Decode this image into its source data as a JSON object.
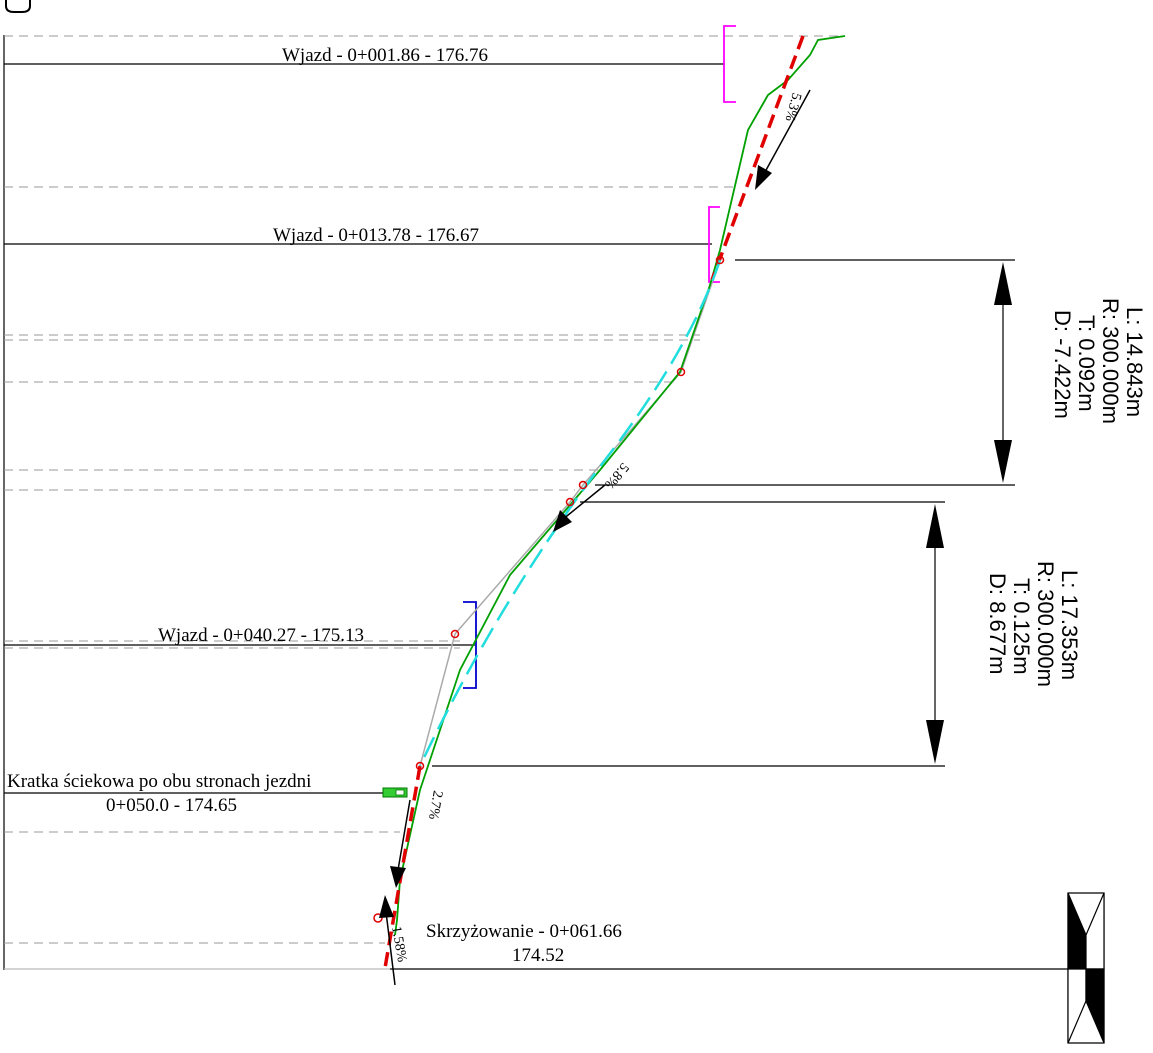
{
  "stations": [
    {
      "label": "Wjazd  - 0+001.86 - 176.76"
    },
    {
      "label": "Wjazd  - 0+013.78 - 176.67"
    },
    {
      "label": "Wjazd  - 0+040.27 - 175.13"
    },
    {
      "label_line1": "Kratka ściekowa po obu stronach jezdni",
      "label_line2": "0+050.0 -  174.65"
    },
    {
      "label_line1": "Skrzyżowanie - 0+061.66",
      "label_line2": "174.52"
    }
  ],
  "slopes": [
    {
      "text": "5.3%"
    },
    {
      "text": "5.8%"
    },
    {
      "text": "2.7%"
    },
    {
      "text": "1.58%"
    }
  ],
  "curves": [
    {
      "L": "L: 14.843m",
      "R": "R: 300.000m",
      "T": "T: 0.092m",
      "D": "D: -7.422m"
    },
    {
      "L": "L: 17.353m",
      "R": "R: 300.000m",
      "T": "T: 0.125m",
      "D": "D: 8.677m"
    }
  ],
  "colors": {
    "terrain": "#00a000",
    "design_grade": "#e00000",
    "vertical_curve": "#22dddd",
    "guide": "#aaaaaa",
    "entry_marker_1": "#ff00ff",
    "entry_marker_2": "#0000cc",
    "drain": "#33cc33"
  }
}
